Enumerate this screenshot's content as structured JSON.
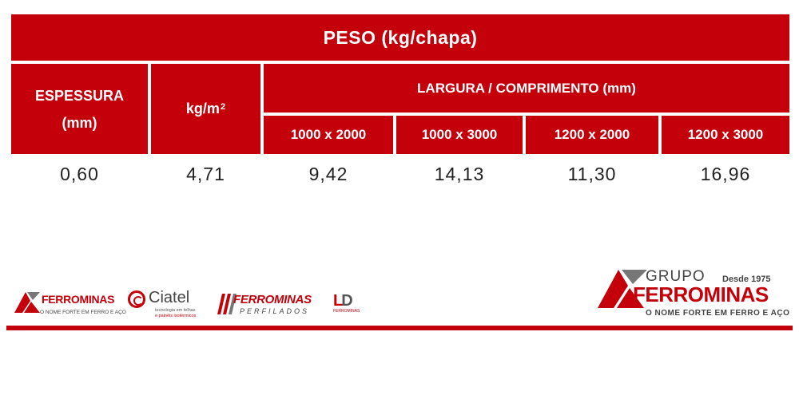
{
  "table": {
    "title": "PESO (kg/chapa)",
    "headers": {
      "espessura_line1": "ESPESSURA",
      "espessura_line2": "(mm)",
      "kg_m2_base": "kg/m",
      "kg_m2_sup": "2",
      "largura": "LARGURA / COMPRIMENTO (mm)",
      "sizes": [
        "1000 x 2000",
        "1000 x 3000",
        "1200 x 2000",
        "1200 x 3000"
      ]
    },
    "rows": [
      [
        "0,60",
        "4,71",
        "9,42",
        "14,13",
        "11,30",
        "16,96"
      ]
    ]
  },
  "logos": {
    "ferrominas": {
      "name": "FERROMINAS",
      "tagline": "O NOME FORTE EM FERRO E AÇO"
    },
    "ciatel": {
      "name": "Ciatel",
      "tagline_line1": "tecnologia em telhas",
      "tagline_line2": "e painéis isotérmicos"
    },
    "ferrominas_perfilados": {
      "name": "FERROMINAS",
      "tagline": "PERFILADOS"
    },
    "ld": {
      "name_l": "L",
      "name_d": "D",
      "tagline": "FERROMINAS"
    },
    "grupo": {
      "grupo": "GRUPO",
      "since": "Desde 1975",
      "name": "FERROMINAS",
      "tagline": "O NOME FORTE EM FERRO E AÇO"
    }
  },
  "colors": {
    "brand_red": "#c4000b",
    "text_dark": "#222222",
    "logo_gray": "#444444"
  }
}
